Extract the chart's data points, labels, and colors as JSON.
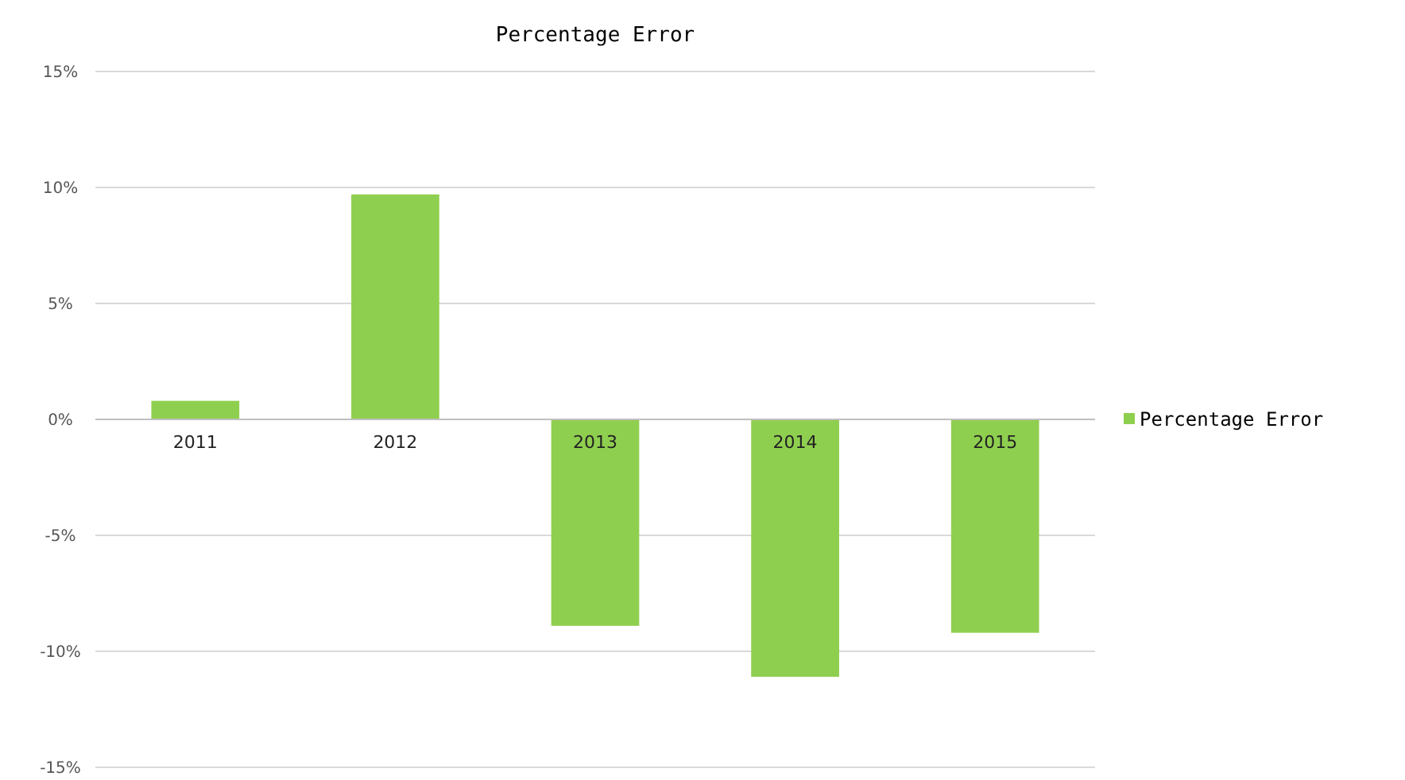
{
  "chart_data": {
    "type": "bar",
    "title": "Percentage Error",
    "categories": [
      "2011",
      "2012",
      "2013",
      "2014",
      "2015"
    ],
    "series": [
      {
        "name": "Percentage Error",
        "color": "#8fcf4f",
        "values": [
          0.8,
          9.7,
          -8.9,
          -11.1,
          -9.2
        ]
      }
    ],
    "ylim": [
      -15,
      15
    ],
    "yticks": [
      {
        "value": -15,
        "label": "-15%"
      },
      {
        "value": -10,
        "label": "-10%"
      },
      {
        "value": -5,
        "label": "-5%"
      },
      {
        "value": 0,
        "label": "0%"
      },
      {
        "value": 5,
        "label": "5%"
      },
      {
        "value": 10,
        "label": "10%"
      },
      {
        "value": 15,
        "label": "15%"
      }
    ],
    "grid": "y",
    "legend": "right"
  }
}
